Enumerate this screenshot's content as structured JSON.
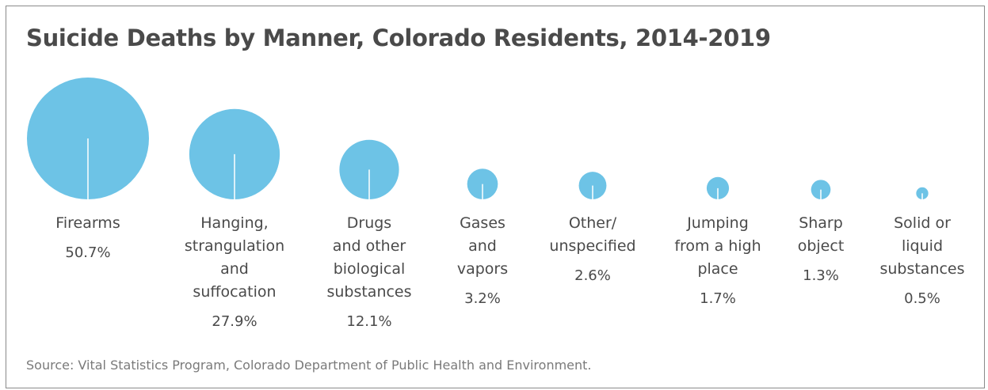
{
  "page": {
    "title": "Suicide Deaths by Manner, Colorado Residents, 2014-2019",
    "source": "Source: Vital Statistics Program, Colorado Department of Public Health and Environment."
  },
  "colors": {
    "bubble": "#6dc3e6",
    "text": "#4a4a4a",
    "source_text": "#7a7a7a",
    "border": "#8a8a8a",
    "stem": "#ffffff"
  },
  "chart_data": {
    "type": "bubble",
    "title": "Suicide Deaths by Manner, Colorado Residents, 2014-2019",
    "unit": "%",
    "categories": [
      "Firearms",
      "Hanging, strangulation and suffocation",
      "Drugs and other biological substances",
      "Gases and vapors",
      "Other/ unspecified",
      "Jumping from a high place",
      "Sharp object",
      "Solid or liquid substances"
    ],
    "values": [
      50.7,
      27.9,
      12.1,
      3.2,
      2.6,
      1.7,
      1.3,
      0.5
    ],
    "items": [
      {
        "label_lines": [
          "Firearms"
        ],
        "value_label": "50.7%"
      },
      {
        "label_lines": [
          "Hanging,",
          "strangulation",
          "and",
          "suffocation"
        ],
        "value_label": "27.9%"
      },
      {
        "label_lines": [
          "Drugs",
          "and other",
          "biological",
          "substances"
        ],
        "value_label": "12.1%"
      },
      {
        "label_lines": [
          "Gases",
          "and",
          "vapors"
        ],
        "value_label": "3.2%"
      },
      {
        "label_lines": [
          "Other/",
          "unspecified"
        ],
        "value_label": "2.6%"
      },
      {
        "label_lines": [
          "Jumping",
          "from a high",
          "place"
        ],
        "value_label": "1.7%"
      },
      {
        "label_lines": [
          "Sharp",
          "object"
        ],
        "value_label": "1.3%"
      },
      {
        "label_lines": [
          "Solid or",
          "liquid",
          "substances"
        ],
        "value_label": "0.5%"
      }
    ]
  }
}
